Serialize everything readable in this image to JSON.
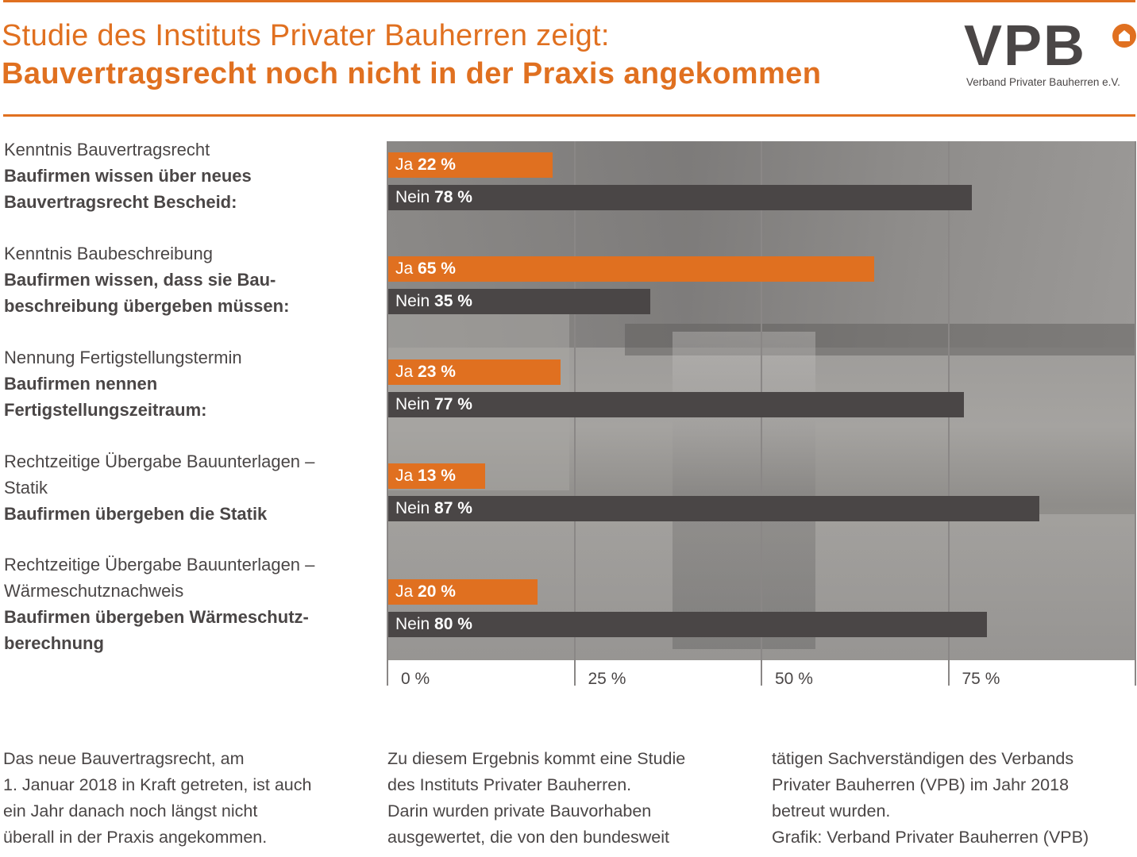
{
  "header": {
    "title_line1": "Studie des Instituts Privater Bauherren zeigt:",
    "title_line2": "Bauvertragsrecht noch nicht in der Praxis angekommen",
    "logo_text": "VPB",
    "logo_icon": "house-icon",
    "logo_subtitle": "Verband Privater Bauherren e.V."
  },
  "colors": {
    "accent": "#e07020",
    "dark": "#4a4646",
    "text": "#4a4646",
    "background": "#ffffff"
  },
  "groups": [
    {
      "category": "Kenntnis Bauvertragsrecht",
      "statement": [
        "Baufirmen wissen über neues",
        "Bauvertragsrecht Bescheid:"
      ]
    },
    {
      "category": "Kenntnis Baubeschreibung",
      "statement": [
        "Baufirmen wissen, dass sie Bau-",
        "beschreibung übergeben müssen:"
      ]
    },
    {
      "category": "Nennung Fertigstellungstermin",
      "statement": [
        "Baufirmen nennen",
        "Fertigstellungszeitraum:"
      ]
    },
    {
      "category": "Rechtzeitige Übergabe Bauunterlagen –\nStatik",
      "category_lines": [
        "Rechtzeitige Übergabe Bauunterlagen –",
        "Statik"
      ],
      "statement": [
        "Baufirmen übergeben die Statik"
      ]
    },
    {
      "category_lines": [
        "Rechtzeitige Übergabe Bauunterlagen –",
        "Wärmeschutznachweis"
      ],
      "statement": [
        "Baufirmen übergeben Wärmeschutz-",
        "berechnung"
      ]
    }
  ],
  "chart_data": {
    "type": "bar",
    "orientation": "horizontal",
    "title": "Bauvertragsrecht noch nicht in der Praxis angekommen",
    "categories": [
      "Baufirmen wissen über neues Bauvertragsrecht Bescheid",
      "Baufirmen wissen, dass sie Baubeschreibung übergeben müssen",
      "Baufirmen nennen Fertigstellungszeitraum",
      "Baufirmen übergeben die Statik",
      "Baufirmen übergeben Wärmeschutzberechnung"
    ],
    "series": [
      {
        "name": "Ja",
        "color": "#e07020",
        "values": [
          22,
          65,
          23,
          13,
          20
        ],
        "labels": [
          "22 %",
          "65 %",
          "23 %",
          "13 %",
          "20 %"
        ]
      },
      {
        "name": "Nein",
        "color": "#4a4646",
        "values": [
          78,
          35,
          77,
          87,
          80
        ],
        "labels": [
          "78 %",
          "35 %",
          "77 %",
          "87 %",
          "80 %"
        ]
      }
    ],
    "xlim": [
      0,
      100
    ],
    "x_ticks": [
      0,
      25,
      50,
      75
    ],
    "x_tick_labels": [
      "0 %",
      "25 %",
      "50 %",
      "75 %"
    ],
    "xlabel": "",
    "ylabel": "",
    "grid": true,
    "background": "construction-site-photo"
  },
  "footer": {
    "col1": [
      "Das neue Bauvertragsrecht, am",
      "1. Januar 2018 in Kraft getreten, ist auch",
      "ein Jahr danach noch längst nicht",
      "überall in der Praxis angekommen."
    ],
    "col2": [
      "Zu diesem Ergebnis kommt eine Studie",
      "des Instituts Privater Bauherren.",
      "Darin wurden private Bauvorhaben",
      "ausgewertet, die von den bundesweit"
    ],
    "col3": [
      "tätigen Sachverständigen des Verbands",
      "Privater Bauherren (VPB) im Jahr 2018",
      "betreut wurden.",
      "Grafik: Verband Privater Bauherren (VPB)"
    ]
  }
}
